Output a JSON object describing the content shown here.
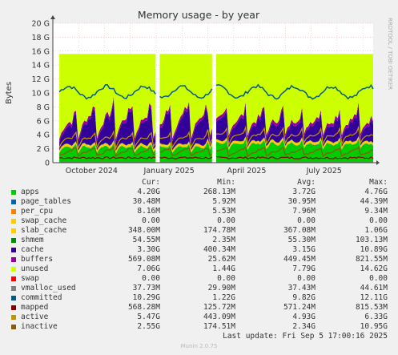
{
  "chart_data": {
    "type": "area",
    "title": "Memory usage - by year",
    "ylabel": "Bytes",
    "side_label": "RRDTOOL / TOBI OETIKER",
    "ylim": [
      0,
      20
    ],
    "ytick_values": [
      0,
      2,
      4,
      6,
      8,
      10,
      12,
      14,
      16,
      18,
      20
    ],
    "ytick_labels": [
      "0",
      "2 G",
      "4 G",
      "6 G",
      "8 G",
      "10 G",
      "12 G",
      "14 G",
      "16 G",
      "18 G",
      "20 G"
    ],
    "xticks": [
      {
        "label": "October 2024",
        "month": 1.5
      },
      {
        "label": "January 2025",
        "month": 4.5
      },
      {
        "label": "April 2025",
        "month": 7.5
      },
      {
        "label": "July 2025",
        "month": 10.5
      }
    ],
    "xlim_months": [
      0,
      12.4
    ],
    "gaps_months": [
      [
        4.0,
        4.12
      ],
      [
        6.18,
        6.25
      ]
    ],
    "stack_order": [
      "apps",
      "page_tables",
      "per_cpu",
      "swap_cache",
      "slab_cache",
      "shmem",
      "cache",
      "buffers",
      "unused",
      "swap"
    ],
    "line_series": [
      "vmalloc_used",
      "committed",
      "mapped",
      "active",
      "inactive"
    ],
    "units": "G"
  },
  "legend": {
    "headers": {
      "cur": "Cur:",
      "min": "Min:",
      "avg": "Avg:",
      "max": "Max:"
    },
    "rows": [
      {
        "name": "apps",
        "color": "#00cc00",
        "cur": "4.20G",
        "min": "268.13M",
        "avg": "3.72G",
        "max": "4.76G"
      },
      {
        "name": "page_tables",
        "color": "#0066b3",
        "cur": "30.48M",
        "min": "5.92M",
        "avg": "30.95M",
        "max": "44.39M"
      },
      {
        "name": "per_cpu",
        "color": "#ff8000",
        "cur": "8.16M",
        "min": "5.53M",
        "avg": "7.96M",
        "max": "9.34M"
      },
      {
        "name": "swap_cache",
        "color": "#ffcc00",
        "cur": "0.00",
        "min": "0.00",
        "avg": "0.00",
        "max": "0.00"
      },
      {
        "name": "slab_cache",
        "color": "#ffcc00",
        "cur": "348.00M",
        "min": "174.78M",
        "avg": "367.08M",
        "max": "1.06G"
      },
      {
        "name": "shmem",
        "color": "#008f00",
        "cur": "54.55M",
        "min": "2.35M",
        "avg": "55.30M",
        "max": "103.13M"
      },
      {
        "name": "cache",
        "color": "#330099",
        "cur": "3.30G",
        "min": "400.34M",
        "avg": "3.15G",
        "max": "10.89G"
      },
      {
        "name": "buffers",
        "color": "#990099",
        "cur": "569.08M",
        "min": "25.62M",
        "avg": "449.45M",
        "max": "821.55M"
      },
      {
        "name": "unused",
        "color": "#ccff00",
        "cur": "7.06G",
        "min": "1.44G",
        "avg": "7.79G",
        "max": "14.62G"
      },
      {
        "name": "swap",
        "color": "#ff0000",
        "cur": "0.00",
        "min": "0.00",
        "avg": "0.00",
        "max": "0.00"
      },
      {
        "name": "vmalloc_used",
        "color": "#808080",
        "cur": "37.73M",
        "min": "29.90M",
        "avg": "37.43M",
        "max": "44.61M"
      },
      {
        "name": "committed",
        "color": "#005a8c",
        "cur": "10.29G",
        "min": "1.22G",
        "avg": "9.82G",
        "max": "12.11G"
      },
      {
        "name": "mapped",
        "color": "#8c0000",
        "cur": "568.28M",
        "min": "125.72M",
        "avg": "571.24M",
        "max": "815.53M"
      },
      {
        "name": "active",
        "color": "#c09600",
        "cur": "5.47G",
        "min": "443.09M",
        "avg": "4.93G",
        "max": "6.33G"
      },
      {
        "name": "inactive",
        "color": "#8c5a00",
        "cur": "2.55G",
        "min": "174.51M",
        "avg": "2.34G",
        "max": "10.95G"
      }
    ]
  },
  "last_update": "Last update: Fri Sep  5 17:00:16 2025",
  "footer": "Munin 2.0.75"
}
